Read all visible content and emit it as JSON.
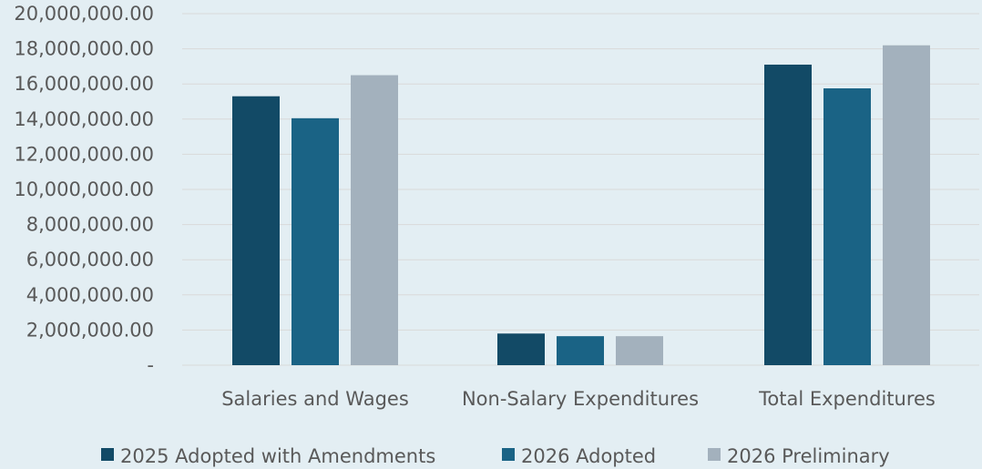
{
  "chart_data": {
    "type": "bar",
    "title": "",
    "xlabel": "",
    "ylabel": "",
    "categories": [
      "Salaries and Wages",
      "Non-Salary Expenditures",
      "Total Expenditures"
    ],
    "series": [
      {
        "name": "2025 Adopted with Amendments",
        "color": "#124a66",
        "values": [
          15300000,
          1800000,
          17100000
        ]
      },
      {
        "name": "2026 Adopted",
        "color": "#1a6385",
        "values": [
          14050000,
          1650000,
          15750000
        ]
      },
      {
        "name": "2026 Preliminary",
        "color": "#a3b1bd",
        "values": [
          16500000,
          1650000,
          18200000
        ]
      }
    ],
    "ylim": [
      0,
      20000000
    ],
    "yticks": [
      0,
      2000000,
      4000000,
      6000000,
      8000000,
      10000000,
      12000000,
      14000000,
      16000000,
      18000000,
      20000000
    ],
    "ytick_labels": [
      "-",
      "2,000,000.00",
      "4,000,000.00",
      "6,000,000.00",
      "8,000,000.00",
      "10,000,000.00",
      "12,000,000.00",
      "14,000,000.00",
      "16,000,000.00",
      "18,000,000.00",
      "20,000,000.00"
    ],
    "grid": true,
    "legend_position": "bottom"
  }
}
